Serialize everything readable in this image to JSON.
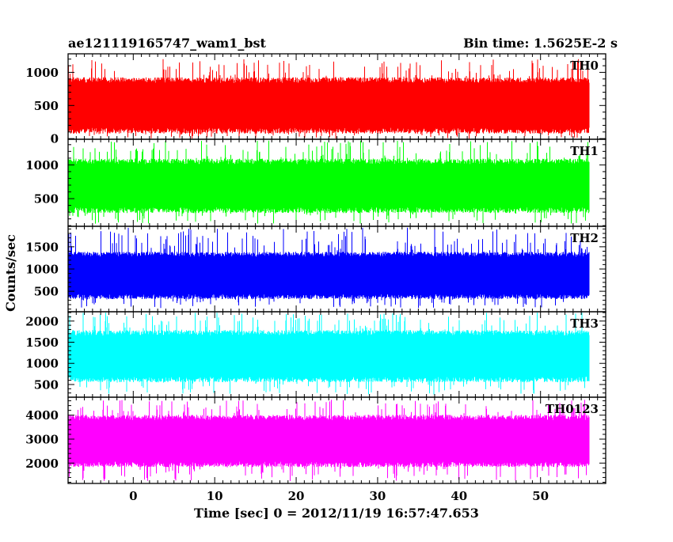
{
  "header": {
    "title": "ae121119165747_wam1_bst",
    "bin_time": "Bin time: 1.5625E-2 s"
  },
  "chart_data": {
    "type": "line",
    "xlabel": "Time [sec] 0 = 2012/11/19 16:57:47.653",
    "ylabel": "Counts/sec",
    "xlim": [
      -8,
      58
    ],
    "x_ticks": [
      0,
      10,
      20,
      30,
      40,
      50
    ],
    "x_range_data": [
      -8,
      56
    ],
    "panels": [
      {
        "name": "TH0",
        "color": "#ff0000",
        "ylim": [
          -10,
          1280
        ],
        "yticks": [
          0,
          500,
          1000
        ],
        "band": [
          120,
          880
        ],
        "spike": [
          0,
          1200
        ],
        "seed": 11
      },
      {
        "name": "TH1",
        "color": "#00ff00",
        "ylim": [
          90,
          1380
        ],
        "yticks": [
          500,
          1000
        ],
        "band": [
          330,
          1050
        ],
        "spike": [
          130,
          1360
        ],
        "seed": 23
      },
      {
        "name": "TH2",
        "color": "#0000ff",
        "ylim": [
          40,
          1960
        ],
        "yticks": [
          500,
          1000,
          1500
        ],
        "band": [
          380,
          1330
        ],
        "spike": [
          120,
          1930
        ],
        "seed": 37
      },
      {
        "name": "TH3",
        "color": "#00ffff",
        "ylim": [
          200,
          2220
        ],
        "yticks": [
          500,
          1000,
          1500,
          2000
        ],
        "band": [
          620,
          1720
        ],
        "spike": [
          260,
          2200
        ],
        "seed": 41
      },
      {
        "name": "TH0123",
        "color": "#ff00ff",
        "ylim": [
          1150,
          4750
        ],
        "yticks": [
          2000,
          3000,
          4000
        ],
        "band": [
          1950,
          3900
        ],
        "spike": [
          1250,
          4650
        ],
        "seed": 59
      }
    ]
  }
}
